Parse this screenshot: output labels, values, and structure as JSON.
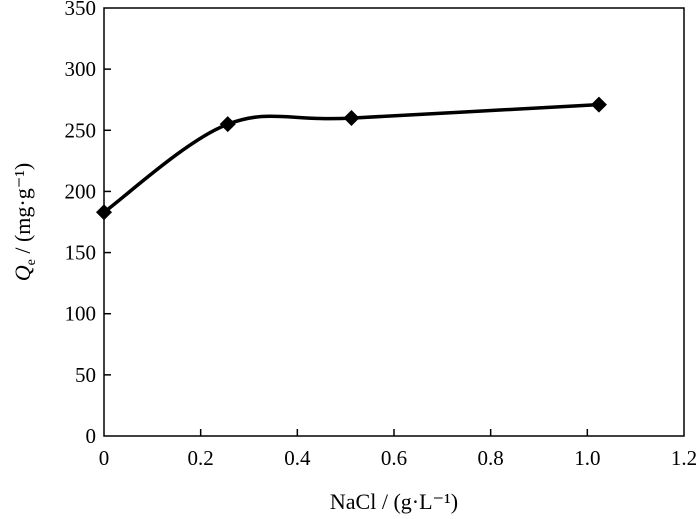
{
  "chart_data": {
    "type": "line",
    "xlabel": "NaCl / (g·L⁻¹)",
    "ylabel_symbol": "Q",
    "ylabel_subscript": "e",
    "ylabel_units": " / (mg·g⁻¹)",
    "xlim": [
      0,
      1.2
    ],
    "ylim": [
      0,
      350
    ],
    "xticks": [
      "0",
      "0.2",
      "0.4",
      "0.6",
      "0.8",
      "1.0",
      "1.2"
    ],
    "yticks": [
      "0",
      "50",
      "100",
      "150",
      "200",
      "250",
      "300",
      "350"
    ],
    "grid": false,
    "series": [
      {
        "marker": "diamond",
        "color": "#000000",
        "smooth": true,
        "x": [
          0,
          0.256,
          0.512,
          1.024
        ],
        "y": [
          183,
          255,
          260,
          271
        ]
      }
    ]
  }
}
